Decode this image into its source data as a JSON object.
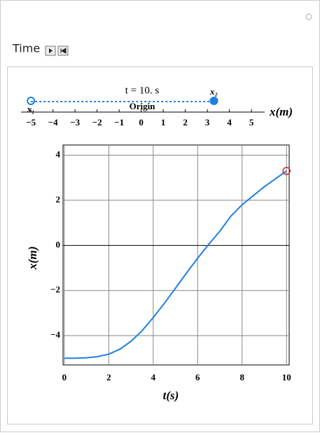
{
  "controls": {
    "label": "Time"
  },
  "number_line": {
    "time_label": "t = 10. s",
    "center_label": "Origin",
    "axis_label": "x(m)",
    "xlim": [
      -5.45,
      5.6
    ],
    "ticks": [
      {
        "value": -5,
        "label": "−5"
      },
      {
        "value": -4,
        "label": "−4"
      },
      {
        "value": -3,
        "label": "−3"
      },
      {
        "value": -2,
        "label": "−2"
      },
      {
        "value": -1,
        "label": "−1"
      },
      0,
      1,
      2,
      3,
      4,
      5
    ],
    "points": [
      {
        "label": "x₁",
        "value": -5
      },
      {
        "label": "x₂",
        "value": 3.3
      }
    ],
    "color": "#1f7fe0"
  },
  "chart_data": {
    "type": "line",
    "x_label": "t(s)",
    "y_label": "x(m)",
    "x": [
      0,
      0.5,
      1,
      1.5,
      2,
      2.5,
      3,
      3.5,
      4,
      4.5,
      5,
      5.5,
      6,
      6.5,
      7,
      7.5,
      8,
      8.5,
      9,
      9.5,
      10
    ],
    "series": [
      {
        "color": "#1f7fe0",
        "values": [
          -5,
          -5,
          -4.98,
          -4.93,
          -4.82,
          -4.6,
          -4.25,
          -3.78,
          -3.2,
          -2.57,
          -1.9,
          -1.22,
          -0.57,
          0.05,
          0.63,
          1.3,
          1.8,
          2.2,
          2.6,
          2.95,
          3.3
        ]
      }
    ],
    "marker": {
      "x": 10,
      "y": 3.3,
      "color": "#d62728"
    },
    "xlim": [
      -0.06,
      10.12
    ],
    "ylim": [
      -5.3,
      4.45
    ],
    "xticks": [
      0,
      2,
      4,
      6,
      8,
      10
    ],
    "yticks": [
      {
        "value": -4,
        "label": "−4"
      },
      {
        "value": -2,
        "label": "−2"
      },
      0,
      2,
      4
    ],
    "grid": true
  }
}
